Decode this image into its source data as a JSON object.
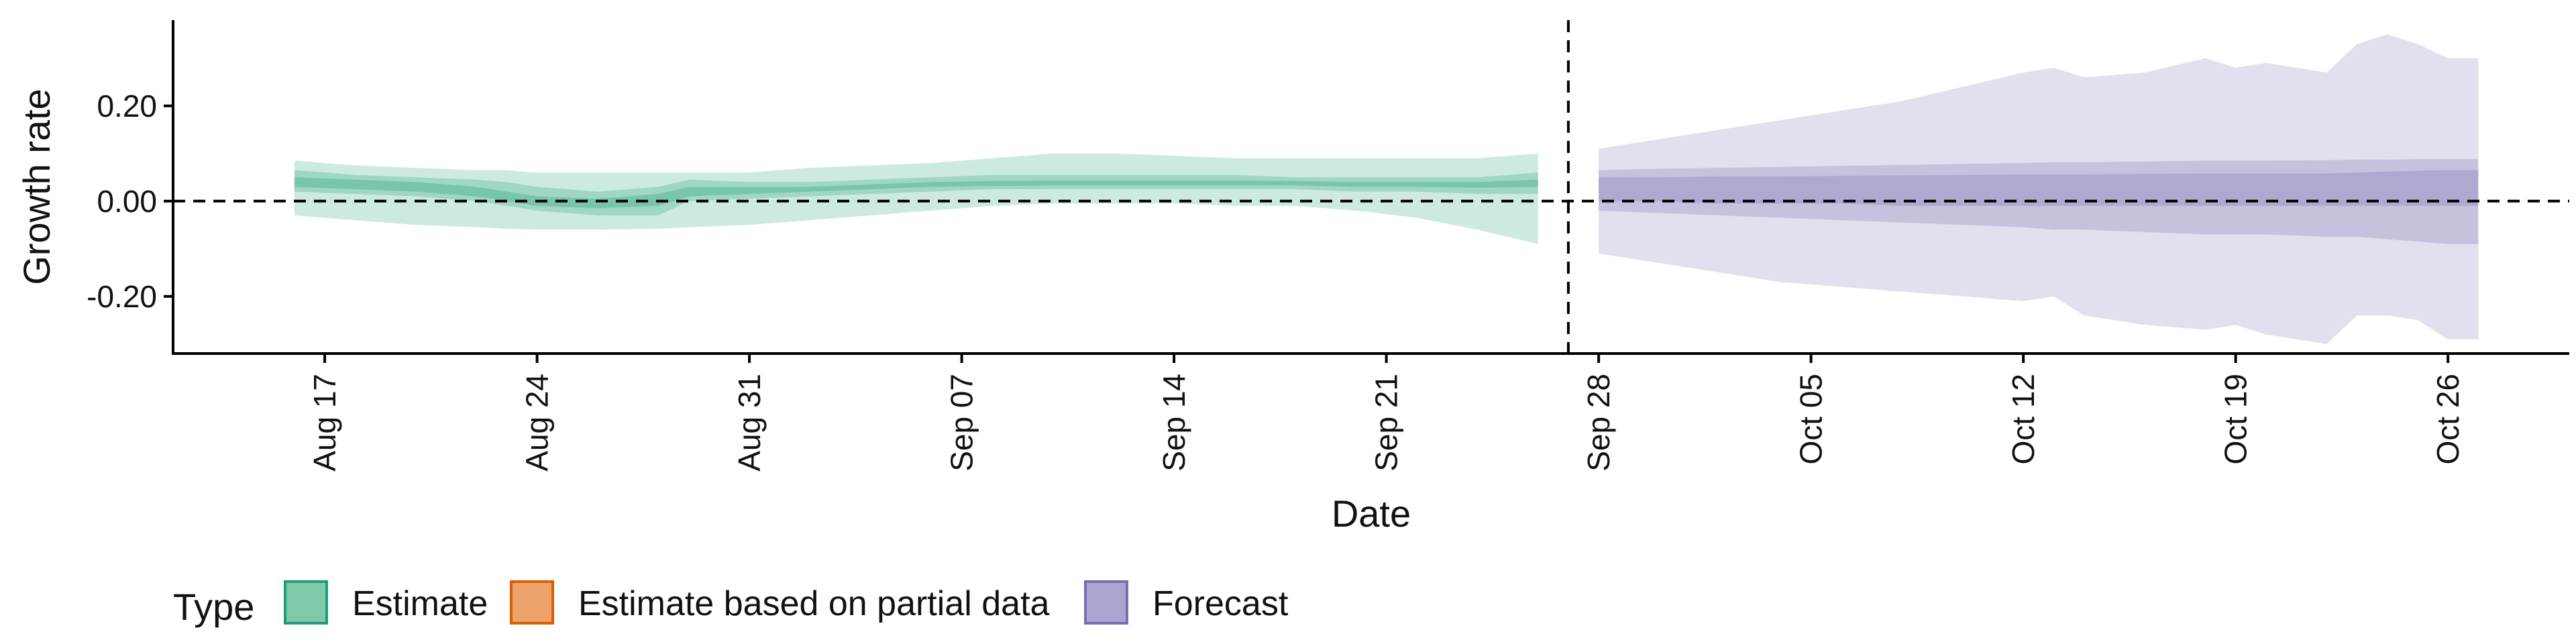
{
  "chart_data": {
    "type": "area",
    "xlabel": "Date",
    "ylabel": "Growth rate",
    "x_axis_type": "date",
    "xlim": [
      "2020-08-12",
      "2020-10-30"
    ],
    "ylim": [
      -0.32,
      0.38
    ],
    "x_ticks": [
      {
        "date": "2020-08-17",
        "label": "Aug 17"
      },
      {
        "date": "2020-08-24",
        "label": "Aug 24"
      },
      {
        "date": "2020-08-31",
        "label": "Aug 31"
      },
      {
        "date": "2020-09-07",
        "label": "Sep 07"
      },
      {
        "date": "2020-09-14",
        "label": "Sep 14"
      },
      {
        "date": "2020-09-21",
        "label": "Sep 21"
      },
      {
        "date": "2020-09-28",
        "label": "Sep 28"
      },
      {
        "date": "2020-10-05",
        "label": "Oct 05"
      },
      {
        "date": "2020-10-12",
        "label": "Oct 12"
      },
      {
        "date": "2020-10-19",
        "label": "Oct 19"
      },
      {
        "date": "2020-10-26",
        "label": "Oct 26"
      }
    ],
    "y_ticks": [
      {
        "value": 0.2,
        "label": "0.20"
      },
      {
        "value": 0.0,
        "label": "0.00"
      },
      {
        "value": -0.2,
        "label": "-0.20"
      }
    ],
    "reference_lines": {
      "horizontal": 0.0,
      "vertical": "2020-09-27"
    },
    "grid": false,
    "legend": {
      "title": "Type",
      "position": "bottom-left",
      "entries": [
        {
          "name": "Estimate",
          "fill": "#7fc8aa",
          "stroke": "#1b9e77"
        },
        {
          "name": "Estimate based on partial data",
          "fill": "#eca46a",
          "stroke": "#d95f02"
        },
        {
          "name": "Forecast",
          "fill": "#aaa6d0",
          "stroke": "#7570b3"
        }
      ]
    },
    "series": [
      {
        "name": "Estimate",
        "color": "#1b9e77",
        "x": [
          "2020-08-16",
          "2020-08-18",
          "2020-08-20",
          "2020-08-22",
          "2020-08-23",
          "2020-08-24",
          "2020-08-26",
          "2020-08-28",
          "2020-08-29",
          "2020-08-31",
          "2020-09-02",
          "2020-09-04",
          "2020-09-06",
          "2020-09-08",
          "2020-09-10",
          "2020-09-12",
          "2020-09-14",
          "2020-09-16",
          "2020-09-18",
          "2020-09-20",
          "2020-09-22",
          "2020-09-24",
          "2020-09-26"
        ],
        "lower_90": [
          -0.03,
          -0.04,
          -0.05,
          -0.055,
          -0.058,
          -0.06,
          -0.06,
          -0.058,
          -0.055,
          -0.05,
          -0.04,
          -0.03,
          -0.02,
          -0.01,
          -0.005,
          -0.005,
          -0.005,
          -0.01,
          -0.01,
          -0.02,
          -0.035,
          -0.06,
          -0.09
        ],
        "upper_90": [
          0.085,
          0.075,
          0.07,
          0.065,
          0.065,
          0.06,
          0.06,
          0.06,
          0.06,
          0.06,
          0.07,
          0.075,
          0.08,
          0.09,
          0.1,
          0.1,
          0.095,
          0.09,
          0.09,
          0.09,
          0.09,
          0.09,
          0.1
        ],
        "lower_50": [
          0.02,
          0.015,
          0.01,
          0.0,
          -0.01,
          -0.02,
          -0.03,
          -0.03,
          0.0,
          0.005,
          0.01,
          0.015,
          0.02,
          0.025,
          0.025,
          0.025,
          0.025,
          0.025,
          0.025,
          0.02,
          0.02,
          0.015,
          0.015
        ],
        "upper_50": [
          0.065,
          0.055,
          0.05,
          0.045,
          0.04,
          0.03,
          0.02,
          0.03,
          0.045,
          0.04,
          0.04,
          0.045,
          0.05,
          0.055,
          0.055,
          0.055,
          0.055,
          0.055,
          0.05,
          0.05,
          0.05,
          0.05,
          0.06
        ],
        "lower_20": [
          0.03,
          0.025,
          0.02,
          0.01,
          0.0,
          -0.01,
          -0.015,
          -0.01,
          0.01,
          0.015,
          0.02,
          0.025,
          0.03,
          0.032,
          0.033,
          0.033,
          0.033,
          0.033,
          0.033,
          0.03,
          0.03,
          0.028,
          0.03
        ],
        "upper_20": [
          0.05,
          0.045,
          0.04,
          0.03,
          0.02,
          0.01,
          0.005,
          0.015,
          0.03,
          0.03,
          0.03,
          0.035,
          0.04,
          0.042,
          0.043,
          0.043,
          0.043,
          0.043,
          0.042,
          0.04,
          0.04,
          0.04,
          0.045
        ]
      },
      {
        "name": "Forecast",
        "color": "#7570b3",
        "x": [
          "2020-09-28",
          "2020-09-30",
          "2020-10-02",
          "2020-10-04",
          "2020-10-06",
          "2020-10-08",
          "2020-10-10",
          "2020-10-12",
          "2020-10-13",
          "2020-10-14",
          "2020-10-16",
          "2020-10-18",
          "2020-10-19",
          "2020-10-20",
          "2020-10-22",
          "2020-10-23",
          "2020-10-24",
          "2020-10-25",
          "2020-10-26",
          "2020-10-27"
        ],
        "lower_90": [
          -0.11,
          -0.13,
          -0.15,
          -0.17,
          -0.18,
          -0.19,
          -0.2,
          -0.21,
          -0.2,
          -0.24,
          -0.26,
          -0.27,
          -0.26,
          -0.28,
          -0.3,
          -0.24,
          -0.24,
          -0.25,
          -0.29,
          -0.29
        ],
        "upper_90": [
          0.11,
          0.13,
          0.15,
          0.17,
          0.19,
          0.21,
          0.24,
          0.27,
          0.28,
          0.26,
          0.27,
          0.3,
          0.28,
          0.29,
          0.27,
          0.33,
          0.35,
          0.33,
          0.3,
          0.3
        ],
        "lower_50": [
          -0.02,
          -0.025,
          -0.03,
          -0.035,
          -0.04,
          -0.045,
          -0.05,
          -0.055,
          -0.06,
          -0.06,
          -0.065,
          -0.07,
          -0.07,
          -0.07,
          -0.075,
          -0.075,
          -0.08,
          -0.085,
          -0.09,
          -0.09
        ],
        "upper_50": [
          0.065,
          0.068,
          0.07,
          0.072,
          0.074,
          0.076,
          0.078,
          0.08,
          0.082,
          0.082,
          0.083,
          0.085,
          0.085,
          0.085,
          0.086,
          0.087,
          0.087,
          0.088,
          0.088,
          0.088
        ],
        "lower_20": [
          0.0,
          0.0,
          -0.005,
          -0.005,
          -0.005,
          -0.01,
          -0.01,
          -0.01,
          -0.01,
          -0.01,
          -0.01,
          -0.01,
          -0.01,
          -0.01,
          -0.01,
          -0.01,
          -0.01,
          -0.01,
          -0.01,
          -0.01
        ],
        "upper_20": [
          0.05,
          0.05,
          0.052,
          0.052,
          0.053,
          0.054,
          0.055,
          0.056,
          0.056,
          0.056,
          0.057,
          0.058,
          0.058,
          0.058,
          0.058,
          0.06,
          0.062,
          0.064,
          0.065,
          0.065
        ]
      }
    ]
  }
}
